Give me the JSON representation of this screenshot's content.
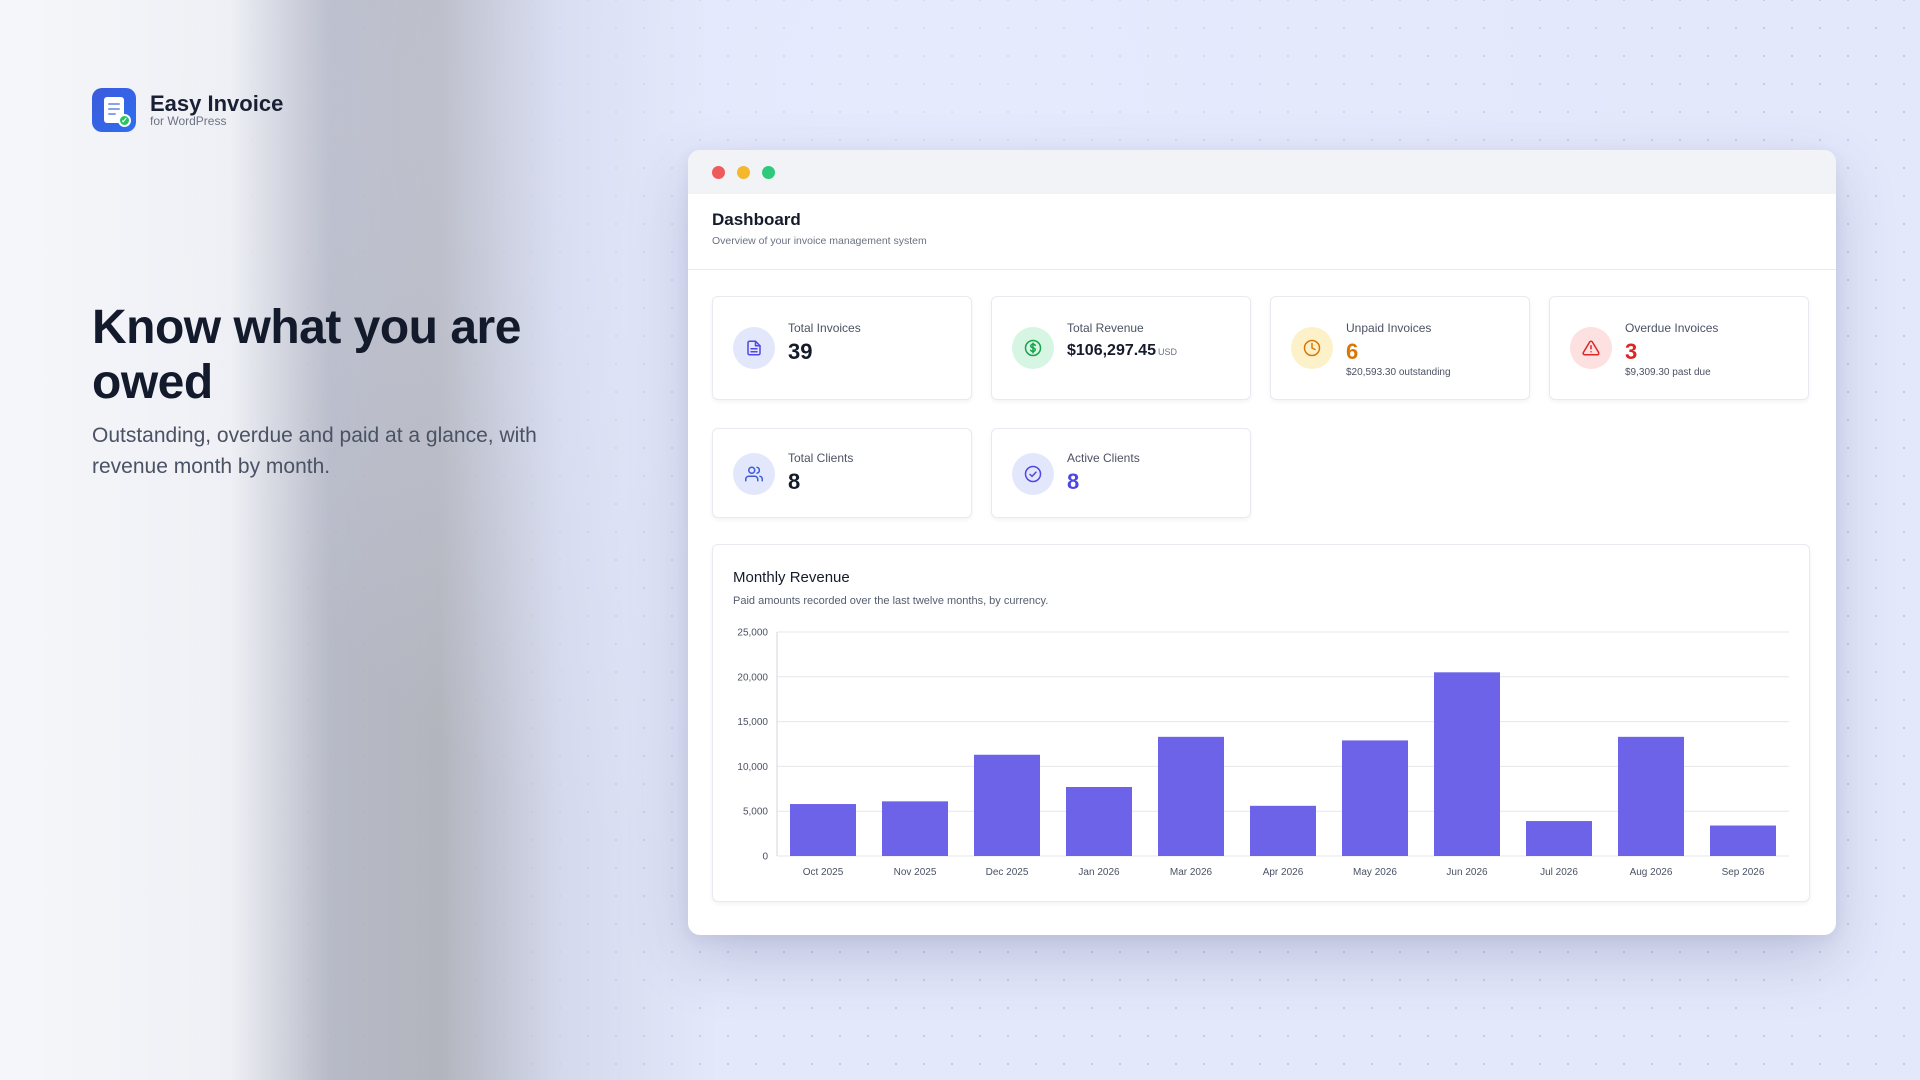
{
  "brand": {
    "name": "Easy Invoice",
    "sub": "for WordPress"
  },
  "hero": {
    "headline": "Know what you are owed",
    "subline": "Outstanding, overdue and paid at a glance, with revenue month by month."
  },
  "dashboard": {
    "title": "Dashboard",
    "description": "Overview of your invoice management system"
  },
  "stats": {
    "total_invoices": {
      "label": "Total Invoices",
      "value": "39"
    },
    "total_revenue": {
      "label": "Total Revenue",
      "value": "$106,297.45",
      "unit": "USD"
    },
    "unpaid_invoices": {
      "label": "Unpaid Invoices",
      "value": "6",
      "note": "$20,593.30 outstanding"
    },
    "overdue_invoices": {
      "label": "Overdue Invoices",
      "value": "3",
      "note": "$9,309.30 past due"
    },
    "total_clients": {
      "label": "Total Clients",
      "value": "8"
    },
    "active_clients": {
      "label": "Active Clients",
      "value": "8"
    }
  },
  "colors": {
    "bar": "#6c63e8",
    "unpaid": "#d97706",
    "overdue": "#dc2626",
    "active": "#4f46e5"
  },
  "icons": {
    "total_invoices": "document-icon",
    "total_revenue": "dollar-icon",
    "unpaid_invoices": "clock-icon",
    "overdue_invoices": "warning-icon",
    "total_clients": "users-icon",
    "active_clients": "check-circle-icon"
  },
  "chart_data": {
    "type": "bar",
    "title": "Monthly Revenue",
    "subtitle": "Paid amounts recorded over the last twelve months, by currency.",
    "categories": [
      "Oct 2025",
      "Nov 2025",
      "Dec 2025",
      "Jan 2026",
      "Mar 2026",
      "Apr 2026",
      "May 2026",
      "Jun 2026",
      "Jul 2026",
      "Aug 2026",
      "Sep 2026"
    ],
    "values": [
      5800,
      6100,
      11300,
      7700,
      13300,
      5600,
      12900,
      20500,
      3900,
      13300,
      3400
    ],
    "ylim": [
      0,
      25000
    ],
    "yticks": [
      0,
      5000,
      10000,
      15000,
      20000,
      25000
    ],
    "ytick_labels": [
      "0",
      "5,000",
      "10,000",
      "15,000",
      "20,000",
      "25,000"
    ],
    "grid": true
  }
}
